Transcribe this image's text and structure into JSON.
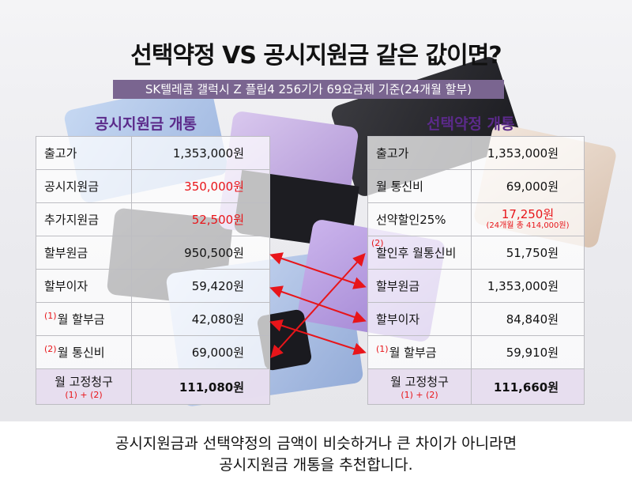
{
  "title": "선택약정 VS 공시지원금 같은 값이면?",
  "subtitle": "SK텔레콤 갤럭시 Z 플립4 256기가 69요금제 기준(24개월 할부)",
  "left": {
    "heading": "공시지원금 개통",
    "rows": [
      {
        "label": "출고가",
        "value": "1,353,000원"
      },
      {
        "label": "공시지원금",
        "value": "350,000원"
      },
      {
        "label": "추가지원금",
        "value": "52,500원"
      },
      {
        "label": "할부원금",
        "value": "950,500원"
      },
      {
        "label": "할부이자",
        "value": "59,420원"
      },
      {
        "mark": "(1)",
        "label": "월 할부금",
        "value": "42,080원"
      },
      {
        "mark": "(2)",
        "label": "월 통신비",
        "value": "69,000원"
      }
    ],
    "total": {
      "label": "월 고정청구",
      "formula": "(1) + (2)",
      "value": "111,080원"
    }
  },
  "right": {
    "heading": "선택약정 개통",
    "rows": [
      {
        "label": "출고가",
        "value": "1,353,000원"
      },
      {
        "label": "월 통신비",
        "value": "69,000원"
      },
      {
        "label": "선약할인25%",
        "value": "17,250원",
        "note": "(24개월 총 414,000원)"
      },
      {
        "mark": "(2)",
        "label": "할인후 월통신비",
        "value": "51,750원"
      },
      {
        "label": "할부원금",
        "value": "1,353,000원"
      },
      {
        "label": "할부이자",
        "value": "84,840원"
      },
      {
        "mark": "(1)",
        "label": "월 할부금",
        "value": "59,910원"
      }
    ],
    "total": {
      "label": "월 고정청구",
      "formula": "(1) + (2)",
      "value": "111,660원"
    }
  },
  "conclusion": {
    "line1": "공시지원금과 선택약정의 금액이 비슷하거나 큰 차이가 아니라면",
    "line2": "공시지원금 개통을 추천합니다."
  },
  "colors": {
    "accent_purple": "#5b2a8a",
    "highlight_red": "#e8151a",
    "subtitle_bg": "#7a6590",
    "total_bg": "#e6dcee"
  }
}
